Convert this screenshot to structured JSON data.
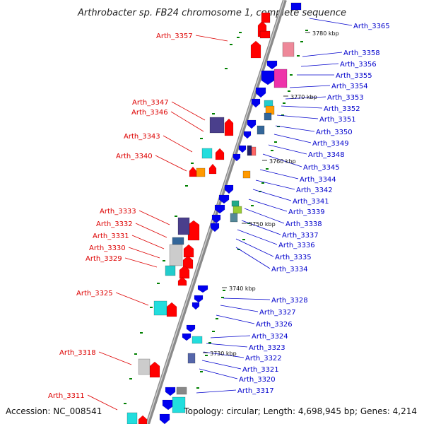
{
  "title": "Arthrobacter sp. FB24 chromosome 1, complete sequence",
  "footer": {
    "accession": "Accession: NC_008541",
    "summary": "Topology: circular; Length: 4,698,945 bp; Genes: 4,214"
  },
  "colors": {
    "backbone": "#888888",
    "forward_label": "#dd0000",
    "reverse_label": "#0000cc",
    "forward_gene": "#ff0000",
    "reverse_gene": "#0000ee",
    "tick": "#008000"
  },
  "kbp_marks": [
    {
      "label": "3780 kbp",
      "pos": 3780
    },
    {
      "label": "3770 kbp",
      "pos": 3770
    },
    {
      "label": "3760 kbp",
      "pos": 3760
    },
    {
      "label": "3750 kbp",
      "pos": 3750
    },
    {
      "label": "3740 kbp",
      "pos": 3740
    },
    {
      "label": "3730 kbp",
      "pos": 3730
    }
  ],
  "left_labels": [
    "Arth_3357",
    "Arth_3347",
    "Arth_3346",
    "Arth_3343",
    "Arth_3340",
    "Arth_3333",
    "Arth_3332",
    "Arth_3331",
    "Arth_3330",
    "Arth_3329",
    "Arth_3325",
    "Arth_3318",
    "Arth_3311"
  ],
  "right_labels": [
    "Arth_3365",
    "Arth_3358",
    "Arth_3356",
    "Arth_3355",
    "Arth_3354",
    "Arth_3353",
    "Arth_3352",
    "Arth_3351",
    "Arth_3350",
    "Arth_3349",
    "Arth_3348",
    "Arth_3345",
    "Arth_3344",
    "Arth_3342",
    "Arth_3341",
    "Arth_3339",
    "Arth_3338",
    "Arth_3337",
    "Arth_3336",
    "Arth_3335",
    "Arth_3334",
    "Arth_3328",
    "Arth_3327",
    "Arth_3326",
    "Arth_3324",
    "Arth_3323",
    "Arth_3322",
    "Arth_3321",
    "Arth_3320",
    "Arth_3317"
  ]
}
